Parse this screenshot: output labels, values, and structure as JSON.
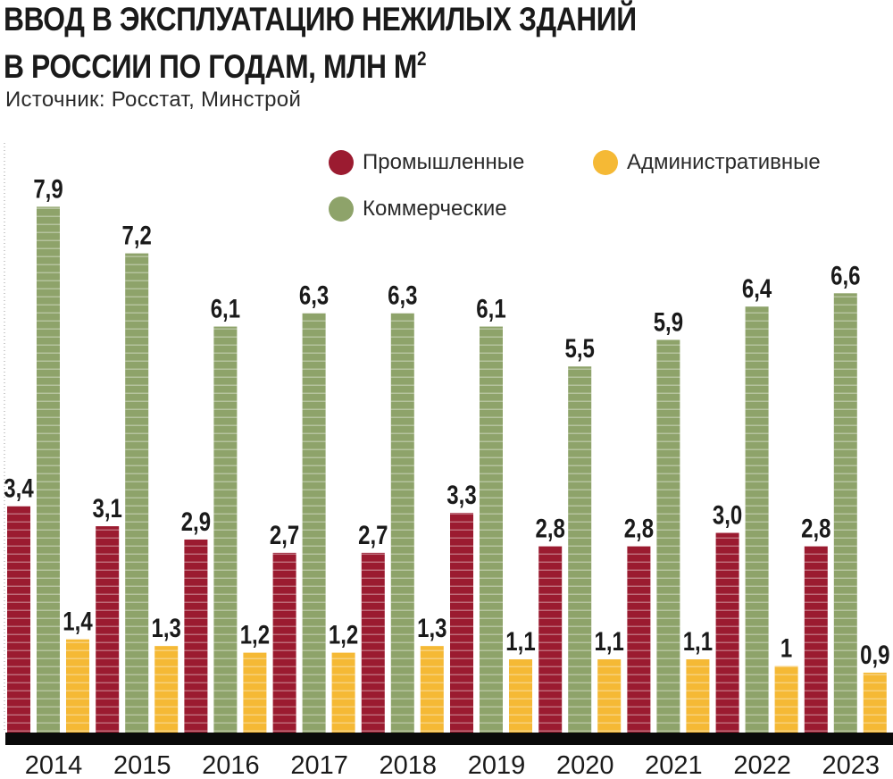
{
  "header": {
    "title_line1": "ВВОД В ЭКСПЛУАТАЦИЮ НЕЖИЛЫХ ЗДАНИЙ",
    "title_line2": "В РОССИИ ПО ГОДАМ, МЛН М",
    "title_sup": "2",
    "source": "Источник: Росстат, Минстрой"
  },
  "legend": {
    "industrial": "Промышленные",
    "administrative": "Административные",
    "commercial": "Коммерческие"
  },
  "colors": {
    "industrial": "#9b1b30",
    "commercial": "#8ea36a",
    "administrative": "#f5b935",
    "baseline": "#0a0a0a"
  },
  "chart_data": {
    "type": "bar",
    "title": "ВВОД В ЭКСПЛУАТАЦИЮ НЕЖИЛЫХ ЗДАНИЙ В РОССИИ ПО ГОДАМ, МЛН М²",
    "categories": [
      "2014",
      "2015",
      "2016",
      "2017",
      "2018",
      "2019",
      "2020",
      "2021",
      "2022",
      "2023"
    ],
    "series": [
      {
        "name": "Промышленные",
        "key": "industrial",
        "values": [
          3.4,
          3.1,
          2.9,
          2.7,
          2.7,
          3.3,
          2.8,
          2.8,
          3.0,
          2.8
        ],
        "labels": [
          "3,4",
          "3,1",
          "2,9",
          "2,7",
          "2,7",
          "3,3",
          "2,8",
          "2,8",
          "3,0",
          "2,8"
        ]
      },
      {
        "name": "Коммерческие",
        "key": "commercial",
        "values": [
          7.9,
          7.2,
          6.1,
          6.3,
          6.3,
          6.1,
          5.5,
          5.9,
          6.4,
          6.6
        ],
        "labels": [
          "7,9",
          "7,2",
          "6,1",
          "6,3",
          "6,3",
          "6,1",
          "5,5",
          "5,9",
          "6,4",
          "6,6"
        ]
      },
      {
        "name": "Административные",
        "key": "administrative",
        "values": [
          1.4,
          1.3,
          1.2,
          1.2,
          1.3,
          1.1,
          1.1,
          1.1,
          1.0,
          0.9
        ],
        "labels": [
          "1,4",
          "1,3",
          "1,2",
          "1,2",
          "1,3",
          "1,1",
          "1,1",
          "1,1",
          "1",
          "0,9"
        ]
      }
    ],
    "xlabel": "",
    "ylabel": "",
    "ylim": [
      0,
      8
    ],
    "grid": false,
    "legend_position": "top-right"
  }
}
